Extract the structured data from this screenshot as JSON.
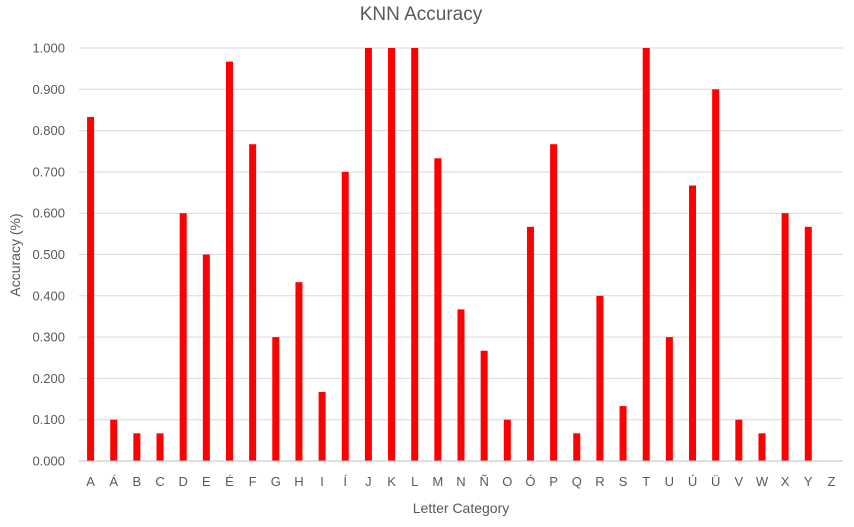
{
  "chart_data": {
    "type": "bar",
    "title": "KNN Accuracy",
    "xlabel": "Letter Category",
    "ylabel": "Accuracy (%)",
    "ylim": [
      0,
      1
    ],
    "y_ticks": [
      "0.000",
      "0.100",
      "0.200",
      "0.300",
      "0.400",
      "0.500",
      "0.600",
      "0.700",
      "0.800",
      "0.900",
      "1.000"
    ],
    "grid": true,
    "legend": "none",
    "bar_color": "#ff0000",
    "categories": [
      "A",
      "Á",
      "B",
      "C",
      "D",
      "E",
      "É",
      "F",
      "G",
      "H",
      "I",
      "Í",
      "J",
      "K",
      "L",
      "M",
      "N",
      "Ñ",
      "O",
      "Ó",
      "P",
      "Q",
      "R",
      "S",
      "T",
      "U",
      "Ú",
      "Ü",
      "V",
      "W",
      "X",
      "Y",
      "Z"
    ],
    "values": [
      0.833,
      0.1,
      0.067,
      0.067,
      0.6,
      0.5,
      0.967,
      0.767,
      0.3,
      0.433,
      0.167,
      0.7,
      1.0,
      1.0,
      1.0,
      0.733,
      0.367,
      0.267,
      0.1,
      0.567,
      0.767,
      0.067,
      0.4,
      0.133,
      1.0,
      0.3,
      0.667,
      0.9,
      0.1,
      0.067,
      0.6,
      0.567,
      0
    ]
  }
}
